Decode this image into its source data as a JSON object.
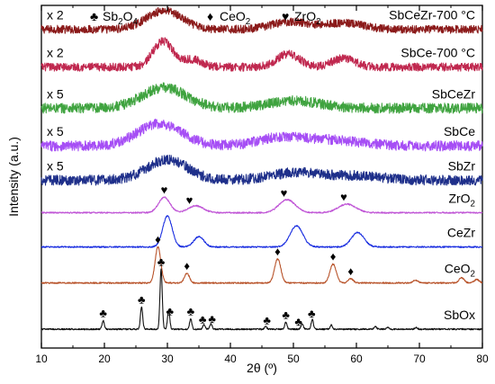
{
  "chart_data": {
    "type": "line",
    "xlabel": "2θ (º)",
    "ylabel": "Intensity (a.u.)",
    "xlim": [
      10,
      80
    ],
    "xticks": [
      10,
      20,
      30,
      40,
      50,
      60,
      70,
      80
    ],
    "grid": false,
    "legend": {
      "placement": "top",
      "items": [
        {
          "symbol": "♣",
          "parts": [
            {
              "t": "Sb"
            },
            {
              "t": "2",
              "sub": true
            },
            {
              "t": "O"
            },
            {
              "t": "4",
              "sub": true
            }
          ]
        },
        {
          "symbol": "♦",
          "parts": [
            {
              "t": "CeO"
            },
            {
              "t": "2",
              "sub": true
            }
          ]
        },
        {
          "symbol": "♥",
          "parts": [
            {
              "t": "ZrO"
            },
            {
              "t": "2",
              "sub": true
            }
          ]
        }
      ]
    },
    "series": [
      {
        "name": "SbCeZr-700 °C",
        "multiplier": "x 2",
        "color": "#8b1a1a",
        "offset": 9.3,
        "noise": 0.12,
        "peaks": [
          [
            29.5,
            0.55,
            2.8
          ],
          [
            49.5,
            0.22,
            3.0
          ],
          [
            58.0,
            0.18,
            3.0
          ]
        ]
      },
      {
        "name": "SbCe-700 °C",
        "multiplier": "x 2",
        "color": "#c0284f",
        "offset": 8.2,
        "noise": 0.12,
        "peaks": [
          [
            29.3,
            0.75,
            1.6
          ],
          [
            34.0,
            0.22,
            1.5
          ],
          [
            49.2,
            0.38,
            1.8
          ],
          [
            58.0,
            0.26,
            1.8
          ]
        ]
      },
      {
        "name": "SbCeZr",
        "multiplier": "x 5",
        "color": "#3fa33f",
        "offset": 7.0,
        "noise": 0.15,
        "peaks": [
          [
            29.5,
            0.6,
            3.5
          ],
          [
            50.0,
            0.22,
            4.0
          ]
        ]
      },
      {
        "name": "SbCe",
        "multiplier": "x 5",
        "color": "#a64ef5",
        "offset": 5.9,
        "noise": 0.15,
        "peaks": [
          [
            28.8,
            0.65,
            3.5
          ],
          [
            48.5,
            0.25,
            4.0
          ],
          [
            57.0,
            0.15,
            4.0
          ]
        ]
      },
      {
        "name": "SbZr",
        "multiplier": "x 5",
        "color": "#1e2f8a",
        "offset": 4.9,
        "noise": 0.15,
        "peaks": [
          [
            30.0,
            0.6,
            3.2
          ],
          [
            50.5,
            0.22,
            4.0
          ],
          [
            60.0,
            0.12,
            4.0
          ]
        ]
      },
      {
        "name": "ZrO2",
        "label_parts": [
          {
            "t": "ZrO"
          },
          {
            "t": "2",
            "sub": true
          }
        ],
        "color": "#c056d6",
        "offset": 3.95,
        "noise": 0.02,
        "peaks": [
          [
            29.5,
            0.45,
            0.9
          ],
          [
            34.5,
            0.2,
            1.2
          ],
          [
            49.0,
            0.38,
            1.3
          ],
          [
            58.5,
            0.25,
            1.4
          ]
        ],
        "markers": [
          {
            "x": 29.5,
            "symbol": "♥"
          },
          {
            "x": 33.5,
            "symbol": "♥"
          },
          {
            "x": 48.5,
            "symbol": "♥"
          },
          {
            "x": 58.0,
            "symbol": "♥"
          }
        ]
      },
      {
        "name": "CeZr",
        "color": "#1b2fe0",
        "offset": 2.95,
        "noise": 0.02,
        "peaks": [
          [
            30.0,
            0.9,
            0.75
          ],
          [
            35.0,
            0.3,
            0.8
          ],
          [
            50.5,
            0.62,
            1.0
          ],
          [
            60.2,
            0.42,
            1.0
          ]
        ]
      },
      {
        "name": "CeO2",
        "label_parts": [
          {
            "t": "CeO"
          },
          {
            "t": "2",
            "sub": true
          }
        ],
        "color": "#b8532a",
        "offset": 1.9,
        "noise": 0.02,
        "peaks": [
          [
            28.5,
            1.05,
            0.45
          ],
          [
            33.1,
            0.28,
            0.4
          ],
          [
            47.5,
            0.7,
            0.5
          ],
          [
            56.3,
            0.55,
            0.5
          ],
          [
            59.1,
            0.12,
            0.4
          ],
          [
            69.4,
            0.08,
            0.4
          ],
          [
            76.7,
            0.15,
            0.4
          ],
          [
            79.1,
            0.1,
            0.4
          ]
        ],
        "markers": [
          {
            "x": 28.5,
            "symbol": "♦"
          },
          {
            "x": 33.1,
            "symbol": "♦"
          },
          {
            "x": 47.5,
            "symbol": "♦"
          },
          {
            "x": 56.3,
            "symbol": "♦"
          },
          {
            "x": 59.1,
            "symbol": "♦"
          }
        ]
      },
      {
        "name": "SbOx",
        "color": "#111111",
        "offset": 0.55,
        "noise": 0.02,
        "peaks": [
          [
            19.8,
            0.25,
            0.18
          ],
          [
            25.9,
            0.65,
            0.18
          ],
          [
            29.0,
            1.75,
            0.18
          ],
          [
            30.2,
            0.55,
            0.18
          ],
          [
            33.7,
            0.3,
            0.18
          ],
          [
            35.8,
            0.12,
            0.18
          ],
          [
            36.9,
            0.16,
            0.18
          ],
          [
            45.6,
            0.08,
            0.18
          ],
          [
            48.8,
            0.2,
            0.18
          ],
          [
            51.4,
            0.16,
            0.18
          ],
          [
            53.0,
            0.28,
            0.18
          ],
          [
            56.0,
            0.12,
            0.18
          ],
          [
            63.0,
            0.08,
            0.2
          ],
          [
            65.0,
            0.06,
            0.2
          ],
          [
            69.5,
            0.05,
            0.2
          ]
        ],
        "markers": [
          {
            "x": 19.8,
            "symbol": "♣"
          },
          {
            "x": 25.9,
            "symbol": "♣"
          },
          {
            "x": 29.0,
            "symbol": "♣"
          },
          {
            "x": 30.4,
            "symbol": "♣"
          },
          {
            "x": 33.7,
            "symbol": "♣"
          },
          {
            "x": 35.6,
            "symbol": "♣"
          },
          {
            "x": 37.1,
            "symbol": "♣"
          },
          {
            "x": 45.8,
            "symbol": "♣"
          },
          {
            "x": 48.8,
            "symbol": "♣"
          },
          {
            "x": 50.8,
            "symbol": "♣"
          },
          {
            "x": 52.9,
            "symbol": "♣"
          }
        ]
      }
    ]
  }
}
